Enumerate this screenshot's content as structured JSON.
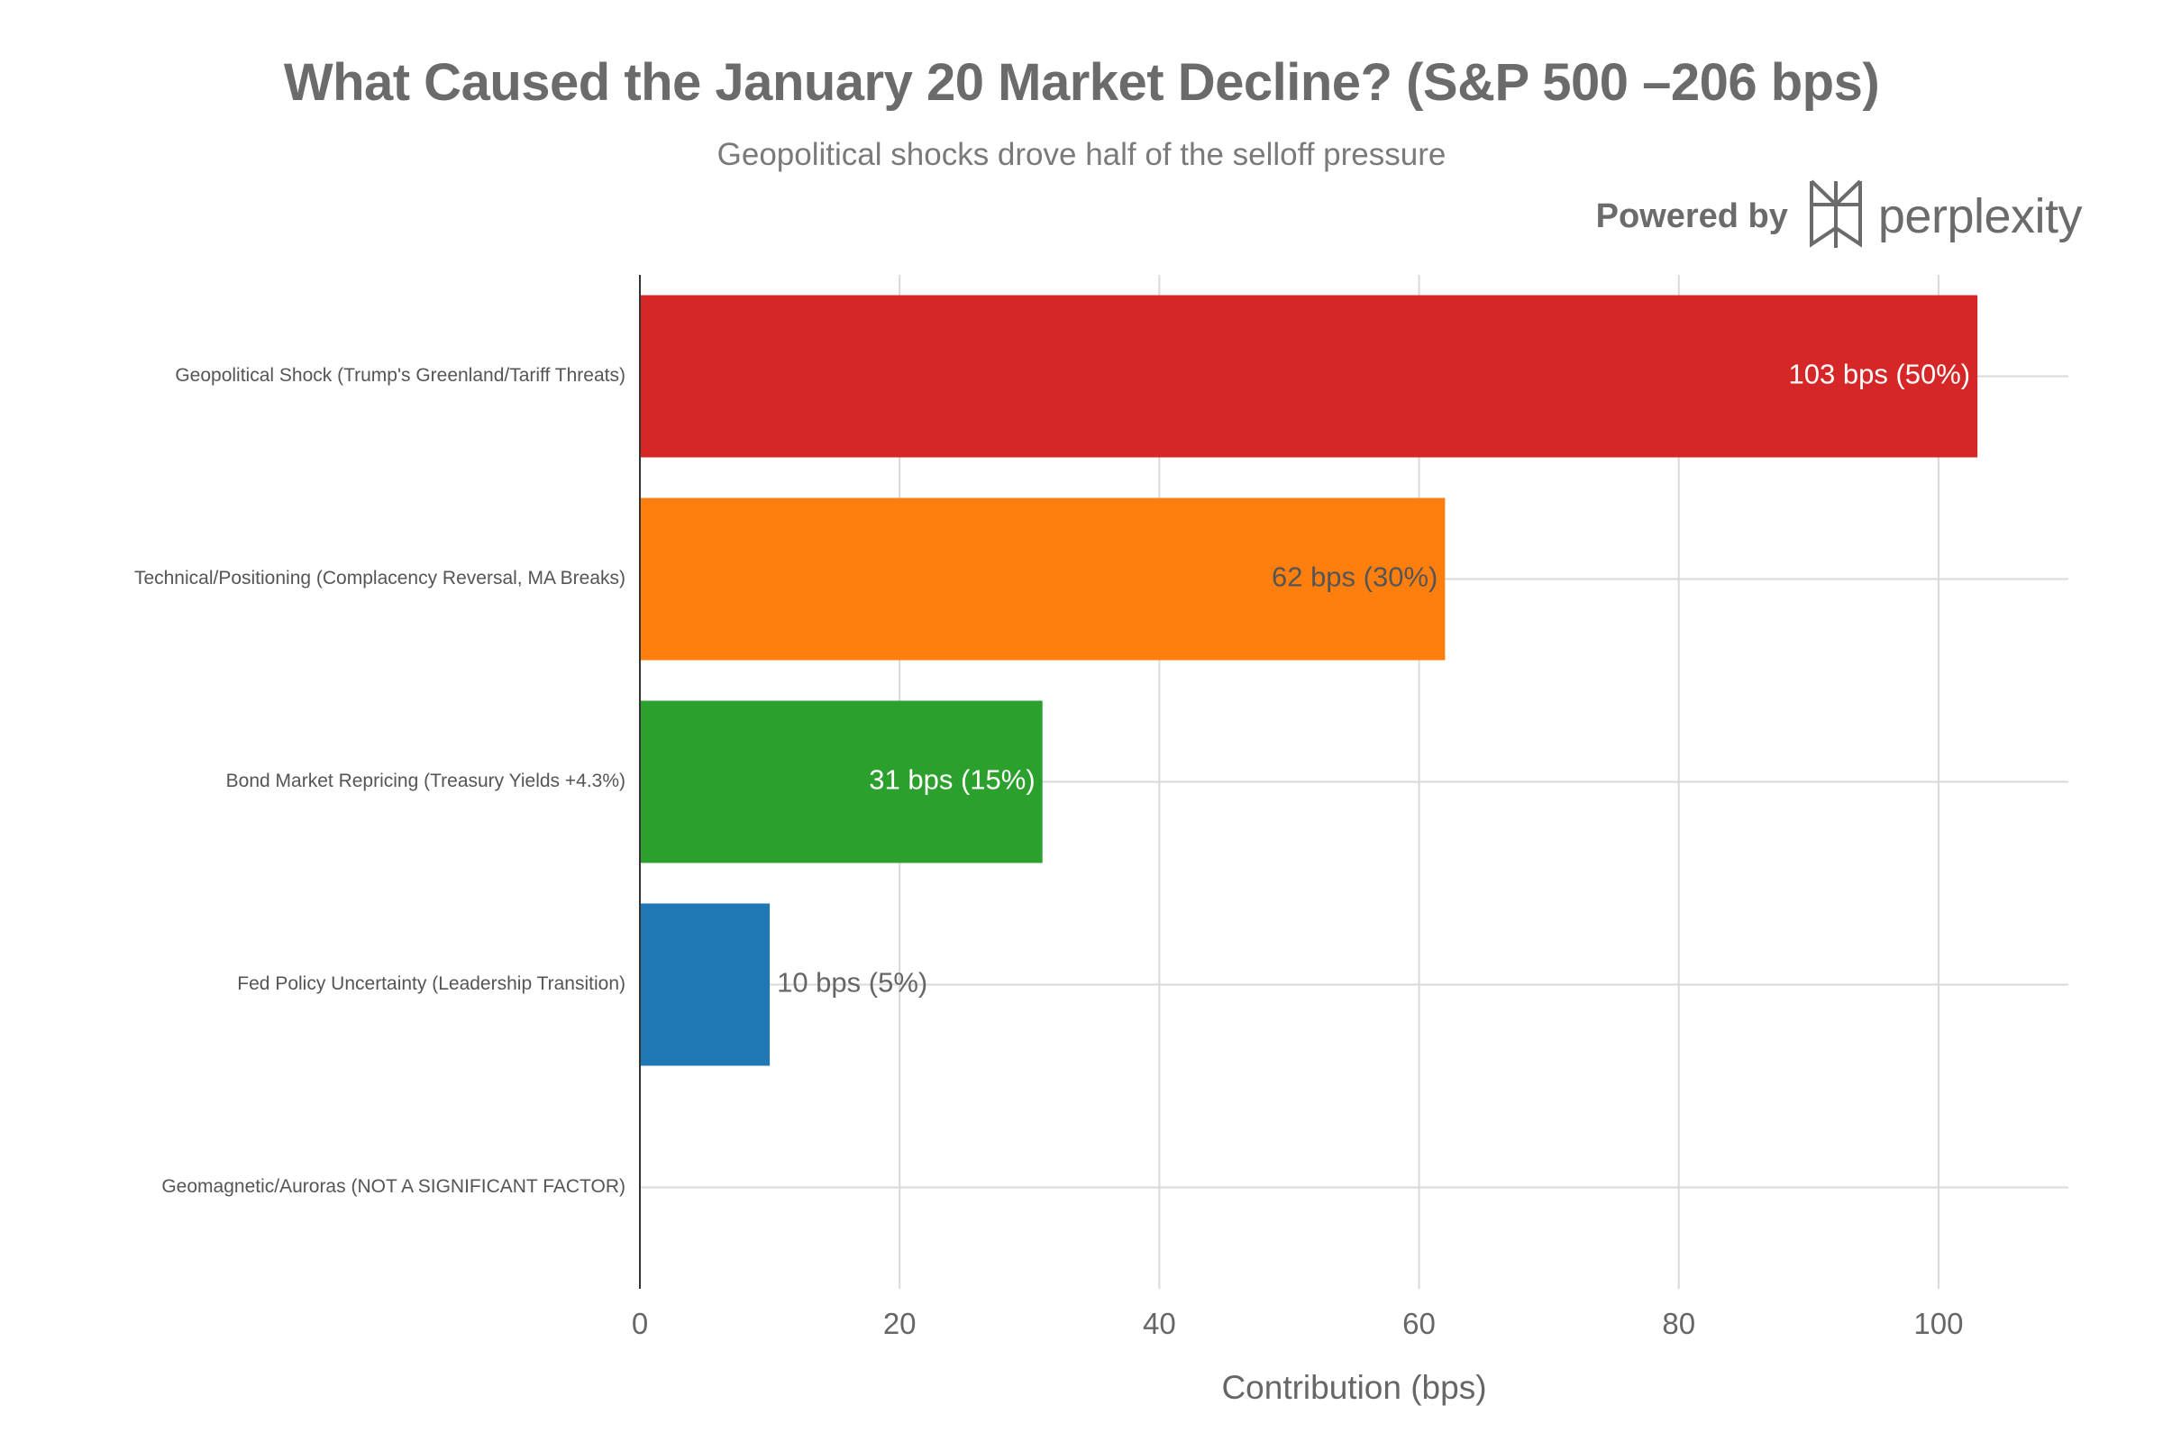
{
  "header": {
    "title": "What Caused the January 20 Market Decline? (S&P 500 –206 bps)",
    "subtitle": "Geopolitical shocks drove half of the selloff pressure"
  },
  "branding": {
    "powered_by": "Powered by",
    "brand_name": "perplexity",
    "logo_icon": "perplexity-logo-icon"
  },
  "chart_data": {
    "type": "bar",
    "orientation": "horizontal",
    "title": "What Caused the January 20 Market Decline? (S&P 500 –206 bps)",
    "subtitle": "Geopolitical shocks drove half of the selloff pressure",
    "xlabel": "Contribution (bps)",
    "ylabel": "",
    "xlim": [
      0,
      110
    ],
    "xticks": [
      0,
      20,
      40,
      60,
      80,
      100
    ],
    "grid": true,
    "legend": "none",
    "categories": [
      "Geopolitical Shock (Trump's Greenland/Tariff Threats)",
      "Technical/Positioning (Complacency Reversal, MA Breaks)",
      "Bond Market Repricing (Treasury Yields +4.3%)",
      "Fed Policy Uncertainty (Leadership Transition)",
      "Geomagnetic/Auroras (NOT A SIGNIFICANT FACTOR)"
    ],
    "values": [
      103,
      62,
      31,
      10,
      0
    ],
    "labels": [
      "103 bps (50%)",
      "62 bps (30%)",
      "31 bps (15%)",
      "10 bps (5%)",
      ""
    ],
    "colors": [
      "#d62728",
      "#ff7f0e",
      "#2ca02c",
      "#1f77b4",
      "#9467bd"
    ],
    "label_colors": [
      "#ffffff",
      "#555555",
      "#ffffff",
      "#666666",
      "#666666"
    ],
    "label_positions": [
      "inside",
      "inside",
      "inside",
      "outside",
      "none"
    ]
  }
}
